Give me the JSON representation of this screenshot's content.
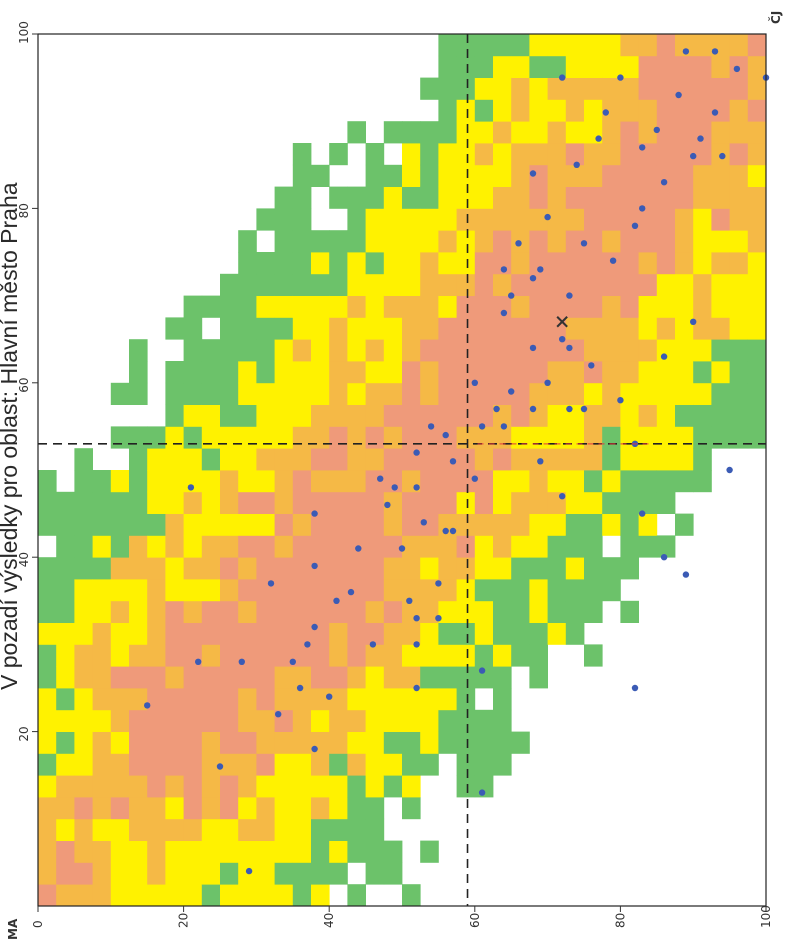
{
  "chart_data": {
    "type": "heatmap",
    "title": "V pozadí výsledky pro oblast: Hlavní město Praha",
    "xlabel": "ČJ",
    "ylabel": "MA",
    "xlim": [
      0,
      100
    ],
    "ylim": [
      0,
      100
    ],
    "x_ticks": [
      "0",
      "20",
      "40",
      "60",
      "80",
      "100"
    ],
    "y_ticks": [
      "20",
      "40",
      "60",
      "80",
      "100"
    ],
    "grid": false,
    "legend": "none",
    "colors": {
      "low": "#6cc26a",
      "mid": "#fff200",
      "high": "#f5b946",
      "peak": "#ef9a7a",
      "points": "#3b5bb5",
      "average_marker": "#333333",
      "reference_line": "#222222",
      "median_highlight": "#e23a3a"
    },
    "reference_lines": {
      "x": 59,
      "y": 53
    },
    "average_marker": {
      "x": 72,
      "y": 67
    },
    "series": [
      {
        "type": "density",
        "bands": [
          {
            "level": 1,
            "color": "low",
            "center_dx": 0,
            "width": 42
          },
          {
            "level": 2,
            "color": "mid",
            "center_dx": 0,
            "width": 28
          },
          {
            "level": 3,
            "color": "high",
            "center_dx": 0,
            "width": 16
          },
          {
            "level": 4,
            "color": "peak",
            "center_dx": 0,
            "width": 8
          }
        ]
      },
      {
        "type": "scatter",
        "points": [
          [
            100,
            95
          ],
          [
            96,
            96
          ],
          [
            93,
            98
          ],
          [
            89,
            98
          ],
          [
            93,
            91
          ],
          [
            85,
            89
          ],
          [
            91,
            88
          ],
          [
            88,
            93
          ],
          [
            86,
            83
          ],
          [
            83,
            87
          ],
          [
            83,
            80
          ],
          [
            77,
            88
          ],
          [
            74,
            85
          ],
          [
            78,
            91
          ],
          [
            80,
            95
          ],
          [
            72,
            95
          ],
          [
            90,
            86
          ],
          [
            94,
            86
          ],
          [
            68,
            84
          ],
          [
            70,
            79
          ],
          [
            79,
            74
          ],
          [
            75,
            76
          ],
          [
            82,
            78
          ],
          [
            66,
            76
          ],
          [
            64,
            73
          ],
          [
            69,
            73
          ],
          [
            65,
            70
          ],
          [
            64,
            68
          ],
          [
            73,
            70
          ],
          [
            72,
            65
          ],
          [
            73,
            64
          ],
          [
            68,
            64
          ],
          [
            76,
            62
          ],
          [
            70,
            60
          ],
          [
            65,
            59
          ],
          [
            75,
            57
          ],
          [
            68,
            57
          ],
          [
            63,
            57
          ],
          [
            61,
            55
          ],
          [
            56,
            54
          ],
          [
            54,
            55
          ],
          [
            52,
            52
          ],
          [
            57,
            51
          ],
          [
            52,
            48
          ],
          [
            49,
            48
          ],
          [
            47,
            49
          ],
          [
            53,
            44
          ],
          [
            56,
            43
          ],
          [
            50,
            41
          ],
          [
            51,
            35
          ],
          [
            52,
            33
          ],
          [
            55,
            33
          ],
          [
            44,
            41
          ],
          [
            41,
            35
          ],
          [
            38,
            32
          ],
          [
            37,
            30
          ],
          [
            35,
            28
          ],
          [
            28,
            28
          ],
          [
            32,
            37
          ],
          [
            38,
            39
          ],
          [
            43,
            36
          ],
          [
            46,
            30
          ],
          [
            36,
            25
          ],
          [
            33,
            22
          ],
          [
            40,
            24
          ],
          [
            61,
            27
          ],
          [
            61,
            13
          ],
          [
            29,
            4
          ],
          [
            21,
            48
          ],
          [
            38,
            45
          ],
          [
            22,
            28
          ],
          [
            38,
            18
          ],
          [
            25,
            16
          ],
          [
            15,
            23
          ],
          [
            48,
            46
          ],
          [
            55,
            37
          ],
          [
            52,
            25
          ],
          [
            57,
            43
          ],
          [
            68,
            72
          ],
          [
            60,
            49
          ],
          [
            64,
            55
          ],
          [
            69,
            51
          ],
          [
            72,
            47
          ],
          [
            73,
            57
          ],
          [
            80,
            58
          ],
          [
            82,
            53
          ],
          [
            86,
            63
          ],
          [
            83,
            45
          ],
          [
            86,
            40
          ],
          [
            89,
            38
          ],
          [
            95,
            50
          ],
          [
            82,
            25
          ],
          [
            90,
            67
          ],
          [
            60,
            60
          ],
          [
            52,
            30
          ]
        ]
      }
    ]
  }
}
